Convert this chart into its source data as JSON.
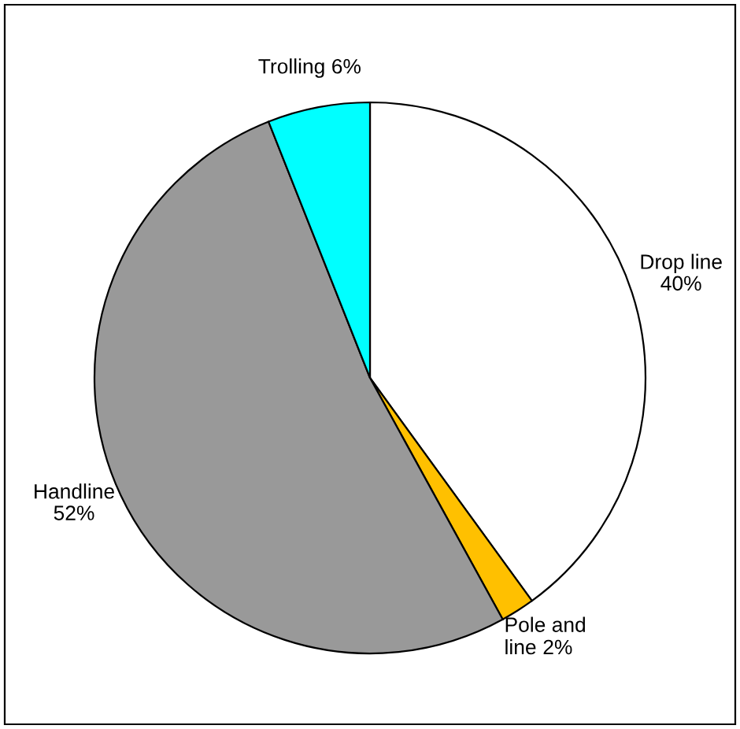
{
  "chart_data": {
    "type": "pie",
    "categories": [
      "Drop line",
      "Pole and line",
      "Handline",
      "Trolling"
    ],
    "values": [
      40,
      2,
      52,
      6
    ],
    "value_labels": [
      "40%",
      "2%",
      "52%",
      "6%"
    ],
    "colors": [
      "#ffffff",
      "#ffc000",
      "#999999",
      "#00ffff"
    ],
    "legend": false
  }
}
